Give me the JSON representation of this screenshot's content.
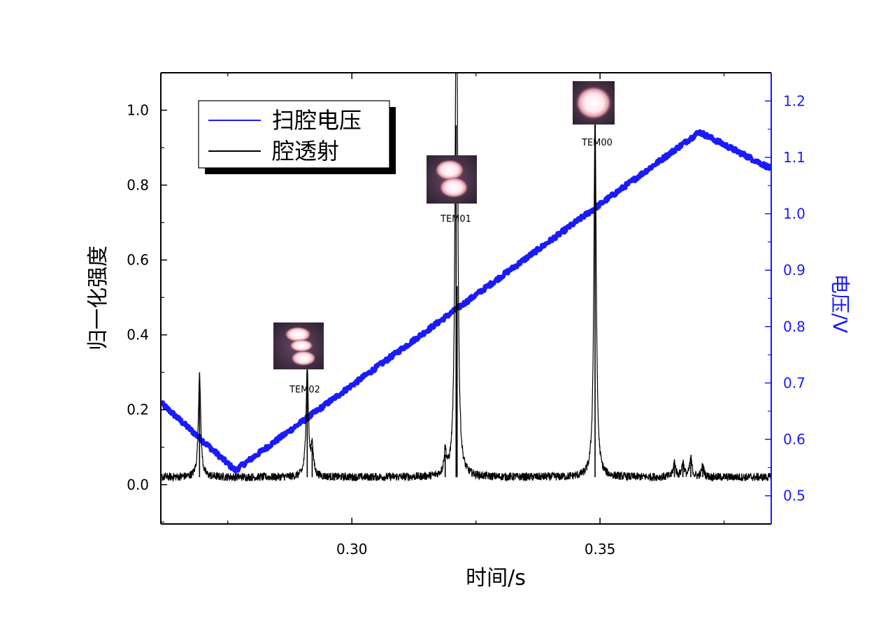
{
  "chart_data": {
    "type": "line",
    "xlabel": "时间/s",
    "ylabel_left": "归一化强度",
    "ylabel_right": "电压/V",
    "xlim": [
      0.2615,
      0.3845
    ],
    "ylim_left": [
      -0.105,
      1.1
    ],
    "ylim_right": [
      0.45,
      1.25
    ],
    "x_ticks": [
      "0.30",
      "0.35"
    ],
    "x_tick_values": [
      0.3,
      0.35
    ],
    "x_minor_tick_values": [
      0.275,
      0.325,
      0.375
    ],
    "y_left_ticks": [
      "0.0",
      "0.2",
      "0.4",
      "0.6",
      "0.8",
      "1.0"
    ],
    "y_left_tick_values": [
      0.0,
      0.2,
      0.4,
      0.6,
      0.8,
      1.0
    ],
    "y_right_ticks": [
      "0.5",
      "0.6",
      "0.7",
      "0.8",
      "0.9",
      "1.0",
      "1.1",
      "1.2"
    ],
    "y_right_tick_values": [
      0.5,
      0.6,
      0.7,
      0.8,
      0.9,
      1.0,
      1.1,
      1.2
    ],
    "colors": {
      "voltage": "#1a1aff",
      "transmission": "#000000",
      "right_axis": "#1a1aff"
    },
    "legend": {
      "placement": "top-left",
      "entries": [
        {
          "label": "扫腔电压",
          "color": "#1a1aff"
        },
        {
          "label": "腔透射",
          "color": "#000000"
        }
      ]
    },
    "series": [
      {
        "name": "扫腔电压",
        "axis": "right",
        "x": [
          0.2615,
          0.2765,
          0.37,
          0.3845
        ],
        "y": [
          0.665,
          0.545,
          1.145,
          1.08
        ]
      },
      {
        "name": "腔透射",
        "axis": "left",
        "baseline": 0.02,
        "peaks": [
          {
            "x": 0.2693,
            "y": 0.3
          },
          {
            "x": 0.291,
            "y": 0.31
          },
          {
            "x": 0.292,
            "y": 0.1
          },
          {
            "x": 0.3188,
            "y": 0.08
          },
          {
            "x": 0.321,
            "y": 0.96
          },
          {
            "x": 0.3212,
            "y": 0.53
          },
          {
            "x": 0.349,
            "y": 1.0
          },
          {
            "x": 0.365,
            "y": 0.06
          },
          {
            "x": 0.3667,
            "y": 0.06
          },
          {
            "x": 0.3683,
            "y": 0.07
          },
          {
            "x": 0.3707,
            "y": 0.05
          }
        ]
      }
    ],
    "annotations": [
      {
        "label": "TEM02",
        "x": 0.291,
        "y": 0.31,
        "image": "mode-image-tem02"
      },
      {
        "label": "TEM01",
        "x": 0.321,
        "y": 0.96,
        "image": "mode-image-tem01"
      },
      {
        "label": "TEM00",
        "x": 0.349,
        "y": 1.0,
        "image": "mode-image-tem00"
      }
    ]
  }
}
